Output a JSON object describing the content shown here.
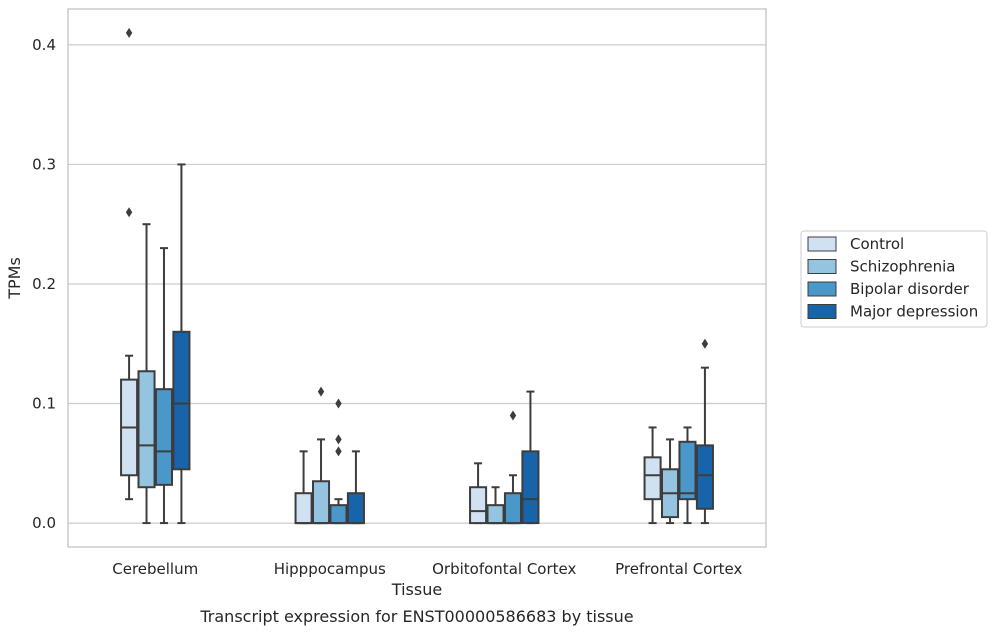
{
  "caption": "Transcript expression for ENST00000586683 by tissue",
  "chart_data": {
    "type": "box",
    "title": "",
    "xlabel": "Tissue",
    "ylabel": "TPMs",
    "ylim": [
      -0.02,
      0.43
    ],
    "yticks": [
      0.0,
      0.1,
      0.2,
      0.3,
      0.4
    ],
    "ytick_labels": [
      "0.0",
      "0.1",
      "0.2",
      "0.3",
      "0.4"
    ],
    "grid": "horizontal",
    "legend_position": "right",
    "categories": [
      "Cerebellum",
      "Hipppocampus",
      "Orbitofontal Cortex",
      "Prefrontal Cortex"
    ],
    "series": [
      {
        "name": "Control",
        "color": "#d0e1f2",
        "boxes": [
          {
            "whisker_low": 0.02,
            "q1": 0.04,
            "median": 0.08,
            "q3": 0.12,
            "whisker_high": 0.14,
            "outliers": [
              0.41,
              0.26
            ]
          },
          {
            "whisker_low": 0.0,
            "q1": 0.0,
            "median": 0.0,
            "q3": 0.025,
            "whisker_high": 0.06,
            "outliers": []
          },
          {
            "whisker_low": 0.0,
            "q1": 0.0,
            "median": 0.01,
            "q3": 0.03,
            "whisker_high": 0.05,
            "outliers": []
          },
          {
            "whisker_low": 0.0,
            "q1": 0.02,
            "median": 0.04,
            "q3": 0.055,
            "whisker_high": 0.08,
            "outliers": []
          }
        ]
      },
      {
        "name": "Schizophrenia",
        "color": "#94c4df",
        "boxes": [
          {
            "whisker_low": 0.0,
            "q1": 0.03,
            "median": 0.065,
            "q3": 0.127,
            "whisker_high": 0.25,
            "outliers": []
          },
          {
            "whisker_low": 0.0,
            "q1": 0.0,
            "median": 0.0,
            "q3": 0.035,
            "whisker_high": 0.07,
            "outliers": [
              0.11
            ]
          },
          {
            "whisker_low": 0.0,
            "q1": 0.0,
            "median": 0.0,
            "q3": 0.015,
            "whisker_high": 0.03,
            "outliers": []
          },
          {
            "whisker_low": 0.0,
            "q1": 0.005,
            "median": 0.025,
            "q3": 0.045,
            "whisker_high": 0.07,
            "outliers": []
          }
        ]
      },
      {
        "name": "Bipolar disorder",
        "color": "#4a98c9",
        "boxes": [
          {
            "whisker_low": 0.0,
            "q1": 0.032,
            "median": 0.06,
            "q3": 0.112,
            "whisker_high": 0.23,
            "outliers": []
          },
          {
            "whisker_low": 0.0,
            "q1": 0.0,
            "median": 0.0,
            "q3": 0.015,
            "whisker_high": 0.02,
            "outliers": [
              0.1,
              0.07,
              0.06
            ]
          },
          {
            "whisker_low": 0.0,
            "q1": 0.0,
            "median": 0.0,
            "q3": 0.025,
            "whisker_high": 0.04,
            "outliers": [
              0.09
            ]
          },
          {
            "whisker_low": 0.0,
            "q1": 0.02,
            "median": 0.025,
            "q3": 0.068,
            "whisker_high": 0.08,
            "outliers": []
          }
        ]
      },
      {
        "name": "Major depression",
        "color": "#1764ab",
        "boxes": [
          {
            "whisker_low": 0.0,
            "q1": 0.045,
            "median": 0.1,
            "q3": 0.16,
            "whisker_high": 0.3,
            "outliers": []
          },
          {
            "whisker_low": 0.0,
            "q1": 0.0,
            "median": 0.0,
            "q3": 0.025,
            "whisker_high": 0.06,
            "outliers": []
          },
          {
            "whisker_low": 0.0,
            "q1": 0.0,
            "median": 0.02,
            "q3": 0.06,
            "whisker_high": 0.11,
            "outliers": []
          },
          {
            "whisker_low": 0.0,
            "q1": 0.012,
            "median": 0.04,
            "q3": 0.065,
            "whisker_high": 0.13,
            "outliers": [
              0.15
            ]
          }
        ]
      }
    ]
  }
}
